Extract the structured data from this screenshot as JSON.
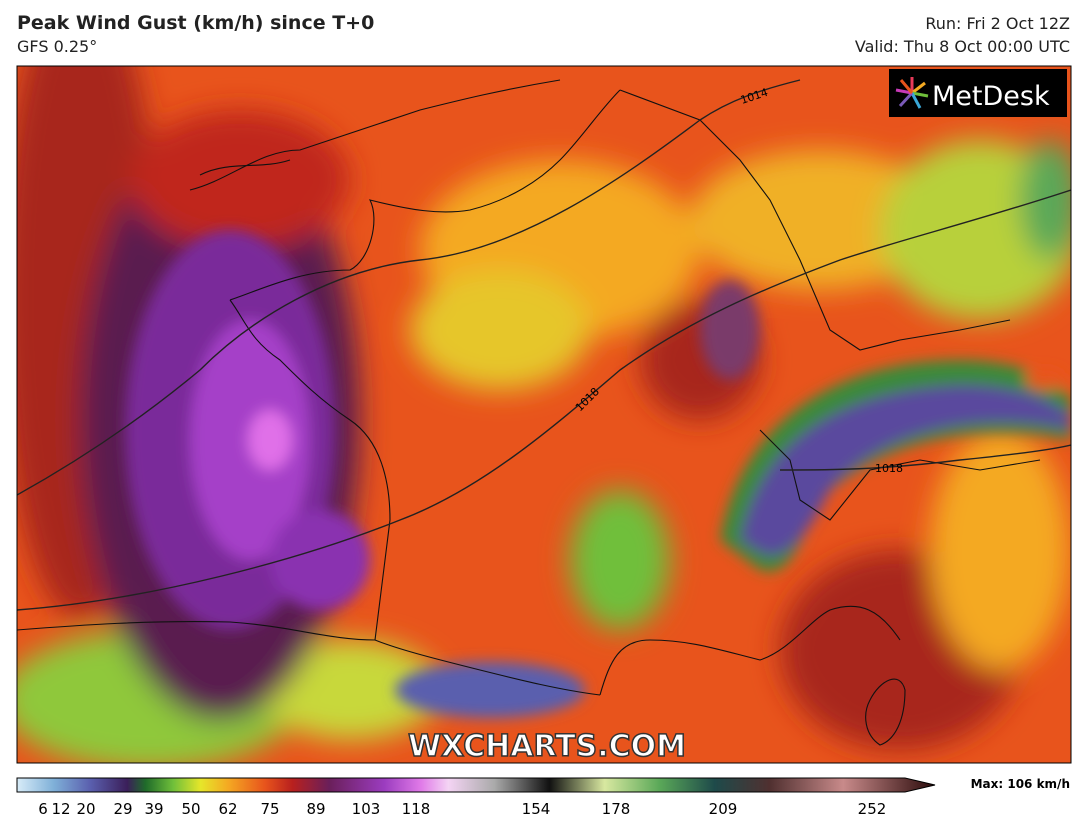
{
  "header": {
    "title": "Peak Wind Gust (km/h) since T+0",
    "subtitle": "GFS 0.25°",
    "run": "Run: Fri 2 Oct 12Z",
    "valid": "Valid: Thu 8 Oct 00:00 UTC"
  },
  "map": {
    "logo": "MetDesk",
    "watermark": "WXCHARTS.COM",
    "isobar_labels": [
      "1014",
      "1018",
      "1018"
    ]
  },
  "colorbar": {
    "ticks": [
      6,
      12,
      20,
      29,
      39,
      50,
      62,
      75,
      89,
      103,
      118,
      154,
      178,
      209,
      252
    ],
    "max_label": "Max: 106 km/h"
  }
}
